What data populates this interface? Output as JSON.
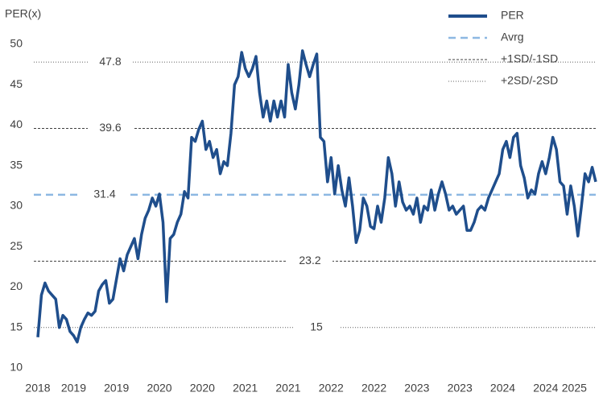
{
  "chart_data": {
    "type": "line",
    "y_label": "PER(x)",
    "categories": [
      "2018",
      null,
      null,
      null,
      null,
      null,
      null,
      null,
      null,
      null,
      "2019",
      null,
      null,
      null,
      null,
      null,
      null,
      null,
      null,
      null,
      null,
      null,
      "2019",
      null,
      null,
      null,
      null,
      null,
      null,
      null,
      null,
      null,
      null,
      null,
      "2020",
      null,
      null,
      null,
      null,
      null,
      null,
      null,
      null,
      null,
      null,
      null,
      "2020",
      null,
      null,
      null,
      null,
      null,
      null,
      null,
      null,
      null,
      null,
      null,
      "2021",
      null,
      null,
      null,
      null,
      null,
      null,
      null,
      null,
      null,
      null,
      null,
      "2021",
      null,
      null,
      null,
      null,
      null,
      null,
      null,
      null,
      null,
      null,
      null,
      "2022",
      null,
      null,
      null,
      null,
      null,
      null,
      null,
      null,
      null,
      null,
      null,
      "2022",
      null,
      null,
      null,
      null,
      null,
      null,
      null,
      null,
      null,
      null,
      null,
      "2023",
      null,
      null,
      null,
      null,
      null,
      null,
      null,
      null,
      null,
      null,
      null,
      "2023",
      null,
      null,
      null,
      null,
      null,
      null,
      null,
      null,
      null,
      null,
      null,
      "2024",
      null,
      null,
      null,
      null,
      null,
      null,
      null,
      null,
      null,
      null,
      null,
      "2024",
      null,
      null,
      null,
      null,
      null,
      null,
      null,
      "2025",
      null,
      null,
      null,
      null,
      null,
      null
    ],
    "series": [
      {
        "name": "PER",
        "color": "#1f4e8c",
        "values": [
          13.8,
          19,
          20.5,
          19.5,
          19,
          18.5,
          15,
          16.5,
          16,
          14.5,
          14,
          13.2,
          15,
          16,
          16.8,
          16.5,
          17,
          19.5,
          20.3,
          20.8,
          18,
          18.5,
          21,
          23.5,
          22,
          24,
          25,
          26,
          23.5,
          26.5,
          28.5,
          29.5,
          31,
          30,
          31.5,
          28,
          18.2,
          26,
          26.5,
          28,
          29,
          31.8,
          31,
          38.5,
          38,
          39.5,
          40.5,
          37,
          38,
          36,
          37,
          34,
          35.5,
          35,
          39,
          45,
          46,
          49,
          47,
          46,
          47,
          48.5,
          44,
          41,
          43,
          40.5,
          43,
          41,
          43,
          41,
          47.5,
          44,
          42,
          45,
          49.2,
          47.5,
          46,
          47.5,
          48.8,
          38.5,
          38,
          33,
          36,
          31.5,
          35,
          32,
          30,
          33.5,
          30,
          25.5,
          27,
          31,
          30,
          27.5,
          27.2,
          30,
          28,
          31,
          36,
          34,
          30,
          33,
          30.5,
          29.5,
          30,
          29,
          31,
          28,
          30,
          29.5,
          32,
          29.5,
          31.5,
          33,
          31.5,
          29.5,
          30,
          29,
          29.5,
          30,
          27,
          27,
          28,
          29.5,
          30,
          29.5,
          31,
          32,
          33,
          34,
          37,
          38,
          36,
          38.5,
          39,
          35,
          33.5,
          31,
          32,
          31.5,
          34,
          35.5,
          34,
          36,
          38.5,
          37,
          33,
          32.5,
          29,
          32.5,
          30,
          26.3,
          30,
          34,
          33,
          34.8,
          33
        ]
      }
    ],
    "reference_lines": [
      {
        "name": "Avrg",
        "values": [
          31.4
        ],
        "color": "#8db8e2",
        "style": "dashed"
      },
      {
        "name": "+1SD/-1SD",
        "values": [
          39.6,
          23.2
        ],
        "color": "#404040",
        "style": "dashed-fine"
      },
      {
        "name": "+2SD/-2SD",
        "values": [
          47.8,
          15.0
        ],
        "color": "#606060",
        "style": "dotted"
      }
    ],
    "ylim": [
      10,
      50
    ],
    "yticks": [
      10,
      15,
      20,
      25,
      30,
      35,
      40,
      45,
      50
    ],
    "legend": "top-right"
  }
}
